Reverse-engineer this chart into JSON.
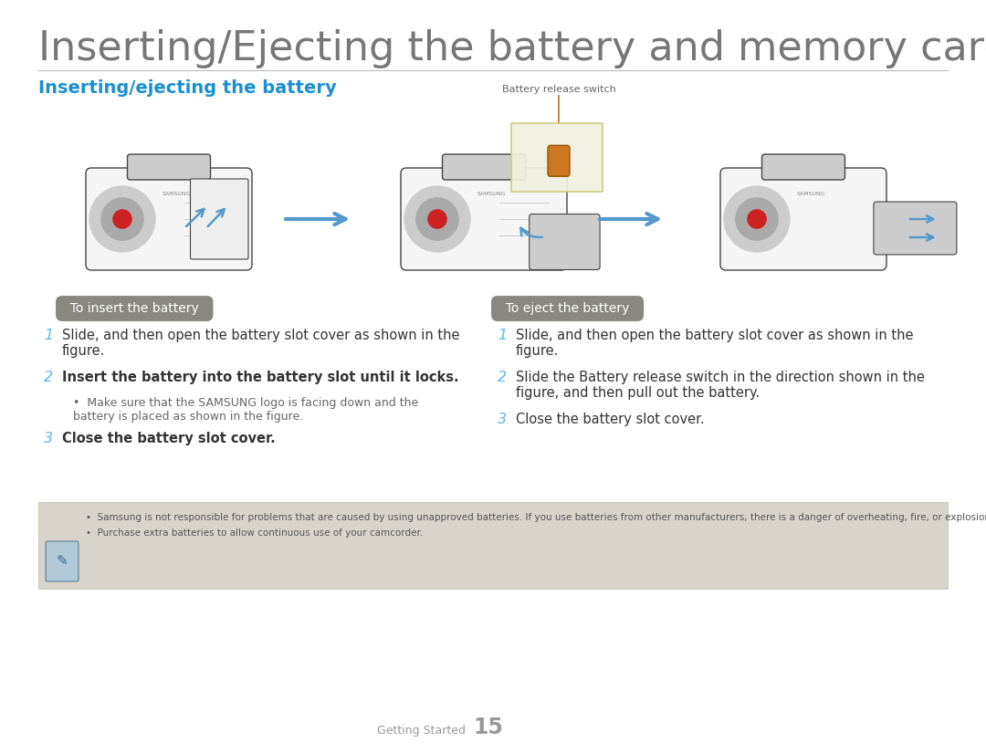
{
  "bg_color": "#ffffff",
  "title": "Inserting/Ejecting the battery and memory card",
  "title_color": "#777777",
  "title_fontsize": 32,
  "subtitle": "Inserting/ejecting the battery",
  "subtitle_color": "#1a8fd1",
  "subtitle_fontsize": 14,
  "line_color": "#bbbbbb",
  "tag_insert_text": "To insert the battery",
  "tag_eject_text": "To eject the battery",
  "tag_bg_color": "#888880",
  "tag_text_color": "#ffffff",
  "tag_fontsize": 10,
  "callout_text": "Battery release switch",
  "callout_color": "#666666",
  "callout_fontsize": 8,
  "insert_steps": [
    "Slide, and then open the battery slot cover as shown in the\nfigure.",
    "Insert the battery into the battery slot until it locks.",
    "Close the battery slot cover."
  ],
  "insert_step_bold": [
    false,
    true,
    true
  ],
  "insert_step2_bullet": "Make sure that the SAMSUNG logo is facing down and the\nbattery is placed as shown in the figure.",
  "eject_steps": [
    "Slide, and then open the battery slot cover as shown in the\nfigure.",
    "Slide the Battery release switch in the direction shown in the\nfigure, and then pull out the battery.",
    "Close the battery slot cover."
  ],
  "eject_step_bold": [
    false,
    false,
    false
  ],
  "step_number_color": "#5bb8f5",
  "step_text_color": "#333333",
  "step_fontsize": 10.5,
  "bullet_fontsize": 9,
  "bullet_color": "#666666",
  "note_bg_color": "#d8d4cc",
  "note_border_color": "#bbbbaa",
  "note_icon_bg": "#b0c8d8",
  "note_icon_border": "#7090a0",
  "note_bullets": [
    "Samsung is not responsible for problems that are caused by using unapproved batteries. If you use batteries from other manufacturers, there is a danger of overheating, fire, or explosion.",
    "Purchase extra batteries to allow continuous use of your camcorder."
  ],
  "note_fontsize": 7.5,
  "note_text_color": "#555555",
  "footer_text": "Getting Started",
  "footer_page": "15",
  "footer_color": "#999999",
  "footer_fontsize": 9,
  "arrow_color": "#5599cc",
  "callout_box_color": "#c8c880",
  "callout_line_color": "#cc7722",
  "cam_edge_color": "#444444",
  "cam_face_color": "#f5f5f5",
  "cam_detail_color": "#cccccc"
}
